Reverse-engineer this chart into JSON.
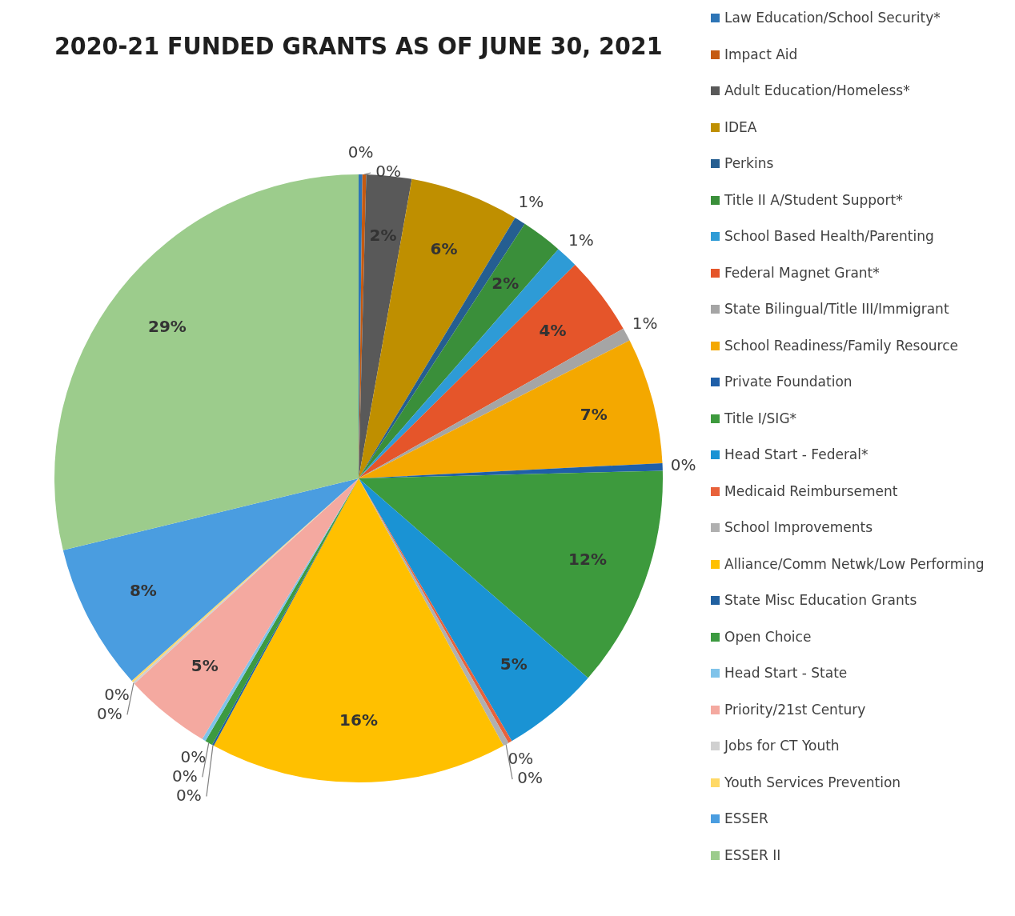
{
  "chart_data": {
    "type": "pie",
    "title": "2020-21 FUNDED GRANTS AS OF JUNE 30, 2021",
    "categories": [
      "Law Education/School Security*",
      "Impact Aid",
      "Adult Education/Homeless*",
      "IDEA",
      "Perkins",
      "Title II A/Student Support*",
      "School Based Health/Parenting",
      "Federal Magnet Grant*",
      "State Bilingual/Title III/Immigrant",
      "School Readiness/Family Resource",
      "Private Foundation",
      "Title I/SIG*",
      "Head Start - Federal*",
      "Medicaid Reimbursement",
      "School Improvements",
      "Alliance/Comm Netwk/Low Performing",
      "State Misc Education Grants",
      "Open Choice",
      "Head Start - State",
      "Priority/21st Century",
      "Jobs for CT Youth",
      "Youth Services Prevention",
      "ESSER",
      "ESSER II"
    ],
    "values": [
      0.2,
      0.2,
      2.4,
      5.8,
      0.6,
      2.2,
      1.2,
      4.2,
      0.7,
      6.7,
      0.4,
      11.8,
      5.2,
      0.2,
      0.3,
      15.8,
      0.1,
      0.4,
      0.2,
      4.6,
      0.1,
      0.1,
      7.8,
      28.8
    ],
    "value_labels": [
      "0%",
      "0%",
      "2%",
      "6%",
      "1%",
      "2%",
      "1%",
      "4%",
      "1%",
      "7%",
      "0%",
      "12%",
      "5%",
      "0%",
      "0%",
      "16%",
      "0%",
      "0%",
      "0%",
      "5%",
      "0%",
      "0%",
      "8%",
      "29%"
    ],
    "colors": [
      "#2e75b6",
      "#c55a11",
      "#595959",
      "#bf8f00",
      "#255e91",
      "#3a8f3a",
      "#2e9bd6",
      "#e5552a",
      "#a5a5a5",
      "#f4a800",
      "#1f5fa8",
      "#3d9a3d",
      "#1a93d4",
      "#e8613a",
      "#b0b0b0",
      "#ffc000",
      "#2060a0",
      "#3c9a40",
      "#7fc3ea",
      "#f4a9a0",
      "#d0d0d0",
      "#ffd966",
      "#4a9de0",
      "#9ccc8c"
    ],
    "legend": "right"
  }
}
